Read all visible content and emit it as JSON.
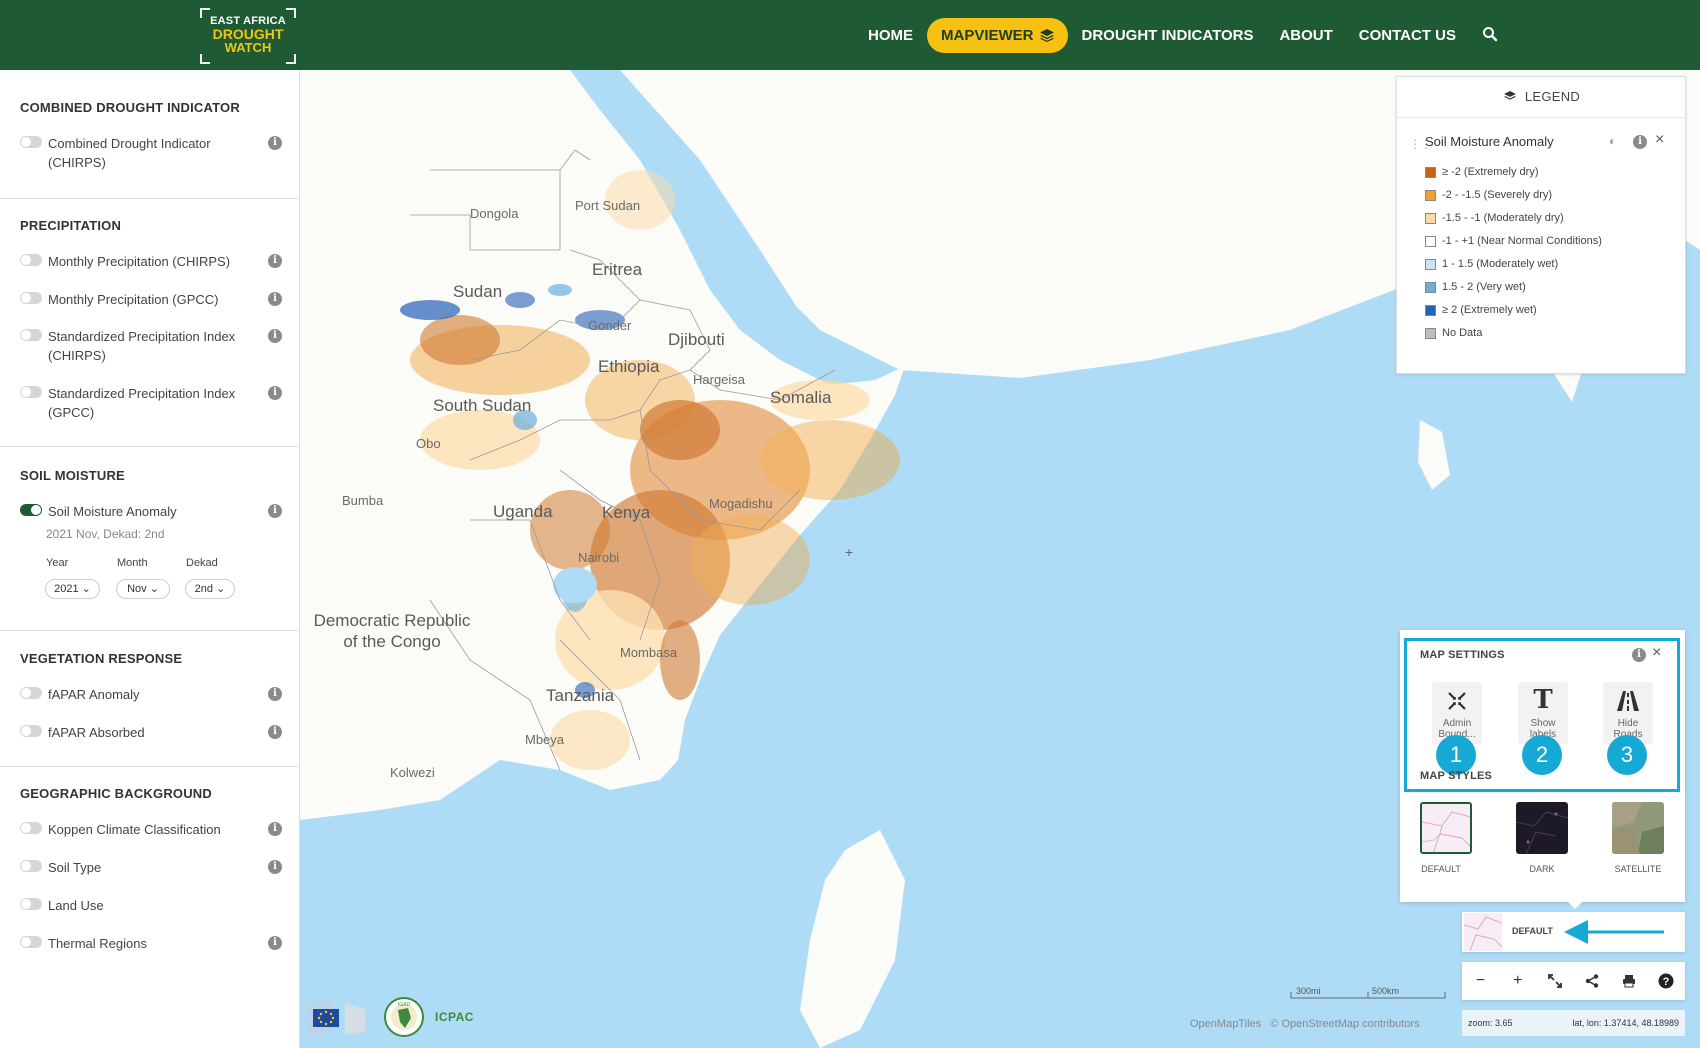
{
  "header": {
    "logo": {
      "line1": "EAST AFRICA",
      "line2": "DROUGHT",
      "line3": "WATCH"
    },
    "nav": [
      {
        "label": "HOME"
      },
      {
        "label": "MAPVIEWER"
      },
      {
        "label": "DROUGHT INDICATORS"
      },
      {
        "label": "ABOUT"
      },
      {
        "label": "CONTACT US"
      }
    ]
  },
  "sidebar": {
    "sections": [
      {
        "title": "COMBINED DROUGHT INDICATOR",
        "items": [
          {
            "label": "Combined Drought Indicator (CHIRPS)",
            "on": false
          }
        ]
      },
      {
        "title": "PRECIPITATION",
        "items": [
          {
            "label": "Monthly Precipitation (CHIRPS)",
            "on": false
          },
          {
            "label": "Monthly Precipitation (GPCC)",
            "on": false
          },
          {
            "label": "Standardized Precipitation Index (CHIRPS)",
            "on": false
          },
          {
            "label": "Standardized Precipitation Index (GPCC)",
            "on": false
          }
        ]
      },
      {
        "title": "SOIL MOISTURE",
        "items": [
          {
            "label": "Soil Moisture Anomaly",
            "on": true
          }
        ]
      },
      {
        "title": "VEGETATION RESPONSE",
        "items": [
          {
            "label": "fAPAR Anomaly",
            "on": false
          },
          {
            "label": "fAPAR Absorbed",
            "on": false
          }
        ]
      },
      {
        "title": "GEOGRAPHIC BACKGROUND",
        "items": [
          {
            "label": "Koppen Climate Classification",
            "on": false
          },
          {
            "label": "Soil Type",
            "on": false
          },
          {
            "label": "Land Use",
            "on": false
          },
          {
            "label": "Thermal Regions",
            "on": false
          }
        ]
      }
    ],
    "soil_date": "2021 Nov, Dekad: 2nd",
    "selectors": [
      {
        "label": "Year",
        "value": "2021"
      },
      {
        "label": "Month",
        "value": "Nov"
      },
      {
        "label": "Dekad",
        "value": "2nd"
      }
    ]
  },
  "map": {
    "labels": [
      {
        "text": "Dongola",
        "big": false
      },
      {
        "text": "Port Sudan",
        "big": false
      },
      {
        "text": "Eritrea",
        "big": true
      },
      {
        "text": "Sudan",
        "big": true
      },
      {
        "text": "Gonder",
        "big": false
      },
      {
        "text": "Djibouti",
        "big": true
      },
      {
        "text": "Ethiopia",
        "big": true
      },
      {
        "text": "Hargeisa",
        "big": false
      },
      {
        "text": "Somalia",
        "big": true
      },
      {
        "text": "South Sudan",
        "big": true
      },
      {
        "text": "Obo",
        "big": false
      },
      {
        "text": "Bumba",
        "big": false
      },
      {
        "text": "Uganda",
        "big": true
      },
      {
        "text": "Kenya",
        "big": true
      },
      {
        "text": "Mogadishu",
        "big": false
      },
      {
        "text": "Nairobi",
        "big": false
      },
      {
        "text": "Democratic Republic of the Congo",
        "big": true
      },
      {
        "text": "Mombasa",
        "big": false
      },
      {
        "text": "Tanzania",
        "big": true
      },
      {
        "text": "Mbeya",
        "big": false
      },
      {
        "text": "Kolwezi",
        "big": false
      }
    ]
  },
  "legend": {
    "header": "LEGEND",
    "layer_title": "Soil Moisture Anomaly",
    "items": [
      {
        "label": "≥ -2 (Extremely dry)",
        "color": "#c8620f"
      },
      {
        "label": "-2 - -1.5 (Severely dry)",
        "color": "#f2a135"
      },
      {
        "label": "-1.5 - -1 (Moderately dry)",
        "color": "#fbd9a3"
      },
      {
        "label": "-1 - +1 (Near Normal Conditions)",
        "color": "#ffffff"
      },
      {
        "label": "1 - 1.5 (Moderately wet)",
        "color": "#cfe3f5"
      },
      {
        "label": "1.5 - 2 (Very wet)",
        "color": "#6aaee0"
      },
      {
        "label": "≥ 2 (Extremely wet)",
        "color": "#2461b8"
      },
      {
        "label": "No Data",
        "color": "#bdbdbd"
      }
    ]
  },
  "settings": {
    "title": "MAP SETTINGS",
    "tools": [
      {
        "label": "Admin Bound...",
        "badge": "1",
        "icon": "admin-boundaries-icon"
      },
      {
        "label": "Show labels",
        "badge": "2",
        "icon": "text-labels-icon"
      },
      {
        "label": "Hide Roads",
        "badge": "3",
        "icon": "road-icon"
      }
    ],
    "styles_title": "MAP STYLES",
    "styles": [
      {
        "label": "DEFAULT",
        "selected": true
      },
      {
        "label": "DARK",
        "selected": false
      },
      {
        "label": "SATELLITE",
        "selected": false
      }
    ]
  },
  "basemap": {
    "label": "DEFAULT"
  },
  "scale": {
    "a": "300mi",
    "b": "500km"
  },
  "status": {
    "zoom": "zoom: 3.65",
    "latlon": "lat, lon: 1.37414, 48.18989"
  },
  "attribution": {
    "a": "OpenMapTiles",
    "b": "© OpenStreetMap contributors"
  },
  "partners": {
    "icpac": "ICPAC",
    "igad": "IGAD"
  },
  "colors": {
    "header": "#1e5a34",
    "accent": "#f7c112",
    "highlight": "#17a9d6",
    "sea": "#aedcf6"
  }
}
